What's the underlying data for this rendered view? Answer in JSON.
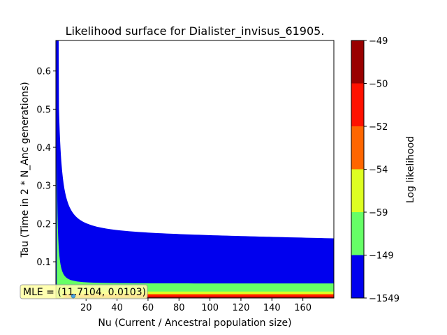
{
  "chart_data": {
    "type": "contour",
    "title": "Likelihood surface for Dialister_invisus_61905.",
    "xlabel": "Nu (Current / Ancestral population size)",
    "ylabel": "Tau (Time in 2 * N_Anc generations)",
    "xlim": [
      0.5,
      180
    ],
    "ylim": [
      0.005,
      0.68
    ],
    "x_ticks": [
      20,
      40,
      60,
      80,
      100,
      120,
      140,
      160
    ],
    "y_ticks": [
      0.1,
      0.2,
      0.3,
      0.4,
      0.5,
      0.6
    ],
    "grid": false,
    "colorbar": {
      "label": "Log likelihood",
      "levels": [
        -1549,
        -149,
        -59,
        -54,
        -52,
        -50,
        -49
      ],
      "tick_labels": [
        "−1549",
        "−149",
        "−59",
        "−54",
        "−52",
        "−50",
        "−49"
      ],
      "colors": [
        "#0000ee",
        "#66ff66",
        "#ddff22",
        "#ff6600",
        "#ff1100",
        "#990000"
      ]
    },
    "bands": [
      {
        "level": "-1549 to -149",
        "color": "#0000ee",
        "x_start": 0.5,
        "upper_tau_far": 0.171,
        "upper_tau_at_nu5": 0.32
      },
      {
        "level": "-149 to -59",
        "color": "#66ff66",
        "x_start": 1.5,
        "upper_tau_far": 0.043,
        "upper_tau_at_nu2": 0.165
      },
      {
        "level": "-59 to -54",
        "color": "#ddff22",
        "upper_tau_far": 0.022
      },
      {
        "level": "-54 to -52",
        "color": "#ff6600",
        "upper_tau_far": 0.016
      },
      {
        "level": "-52 to -50",
        "color": "#ff1100",
        "upper_tau_far": 0.012
      },
      {
        "level": "-50 to -49",
        "color": "#990000",
        "upper_tau_far": 0.008
      }
    ],
    "mle": {
      "nu": 11.7104,
      "tau": 0.0103,
      "label": "MLE = (11.7104, 0.0103)"
    }
  }
}
